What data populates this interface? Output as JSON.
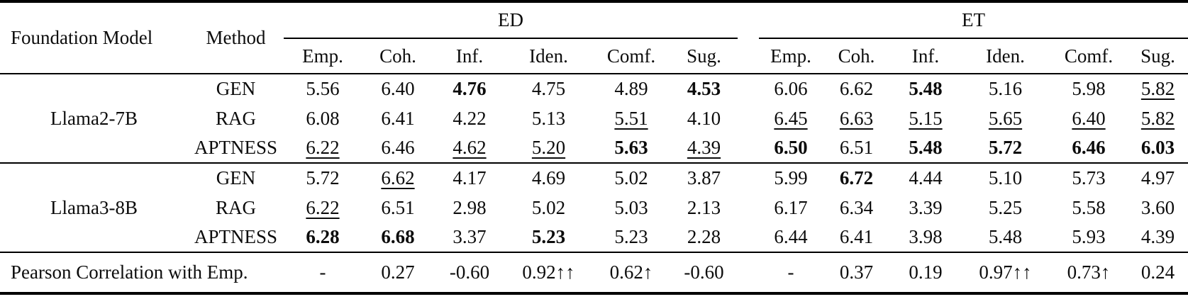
{
  "table": {
    "col_headers": {
      "foundation_model": "Foundation Model",
      "method": "Method",
      "groups": [
        {
          "label": "ED",
          "cols": [
            "Emp.",
            "Coh.",
            "Inf.",
            "Iden.",
            "Comf.",
            "Sug."
          ]
        },
        {
          "label": "ET",
          "cols": [
            "Emp.",
            "Coh.",
            "Inf.",
            "Iden.",
            "Comf.",
            "Sug."
          ]
        }
      ]
    },
    "sections": [
      {
        "model": "Llama2-7B",
        "rows": [
          {
            "method": "GEN",
            "ed": [
              {
                "v": "5.56"
              },
              {
                "v": "6.40"
              },
              {
                "v": "4.76",
                "b": true
              },
              {
                "v": "4.75"
              },
              {
                "v": "4.89"
              },
              {
                "v": "4.53",
                "b": true
              }
            ],
            "et": [
              {
                "v": "6.06"
              },
              {
                "v": "6.62"
              },
              {
                "v": "5.48",
                "b": true
              },
              {
                "v": "5.16"
              },
              {
                "v": "5.98"
              },
              {
                "v": "5.82",
                "u": true
              }
            ]
          },
          {
            "method": "RAG",
            "ed": [
              {
                "v": "6.08"
              },
              {
                "v": "6.41"
              },
              {
                "v": "4.22"
              },
              {
                "v": "5.13"
              },
              {
                "v": "5.51",
                "u": true
              },
              {
                "v": "4.10"
              }
            ],
            "et": [
              {
                "v": "6.45",
                "u": true
              },
              {
                "v": "6.63",
                "u": true
              },
              {
                "v": "5.15",
                "u": true
              },
              {
                "v": "5.65",
                "u": true
              },
              {
                "v": "6.40",
                "u": true
              },
              {
                "v": "5.82",
                "u": true
              }
            ]
          },
          {
            "method": "APTNESS",
            "ed": [
              {
                "v": "6.22",
                "u": true
              },
              {
                "v": "6.46"
              },
              {
                "v": "4.62",
                "u": true
              },
              {
                "v": "5.20",
                "u": true
              },
              {
                "v": "5.63",
                "b": true
              },
              {
                "v": "4.39",
                "u": true
              }
            ],
            "et": [
              {
                "v": "6.50",
                "b": true
              },
              {
                "v": "6.51"
              },
              {
                "v": "5.48",
                "b": true
              },
              {
                "v": "5.72",
                "b": true
              },
              {
                "v": "6.46",
                "b": true
              },
              {
                "v": "6.03",
                "b": true
              }
            ]
          }
        ]
      },
      {
        "model": "Llama3-8B",
        "rows": [
          {
            "method": "GEN",
            "ed": [
              {
                "v": "5.72"
              },
              {
                "v": "6.62",
                "u": true
              },
              {
                "v": "4.17"
              },
              {
                "v": "4.69"
              },
              {
                "v": "5.02"
              },
              {
                "v": "3.87"
              }
            ],
            "et": [
              {
                "v": "5.99"
              },
              {
                "v": "6.72",
                "b": true
              },
              {
                "v": "4.44"
              },
              {
                "v": "5.10"
              },
              {
                "v": "5.73"
              },
              {
                "v": "4.97"
              }
            ]
          },
          {
            "method": "RAG",
            "ed": [
              {
                "v": "6.22",
                "u": true
              },
              {
                "v": "6.51"
              },
              {
                "v": "2.98"
              },
              {
                "v": "5.02"
              },
              {
                "v": "5.03"
              },
              {
                "v": "2.13"
              }
            ],
            "et": [
              {
                "v": "6.17"
              },
              {
                "v": "6.34"
              },
              {
                "v": "3.39"
              },
              {
                "v": "5.25"
              },
              {
                "v": "5.58"
              },
              {
                "v": "3.60"
              }
            ]
          },
          {
            "method": "APTNESS",
            "ed": [
              {
                "v": "6.28",
                "b": true
              },
              {
                "v": "6.68",
                "b": true
              },
              {
                "v": "3.37"
              },
              {
                "v": "5.23",
                "b": true
              },
              {
                "v": "5.23"
              },
              {
                "v": "2.28"
              }
            ],
            "et": [
              {
                "v": "6.44"
              },
              {
                "v": "6.41"
              },
              {
                "v": "3.98"
              },
              {
                "v": "5.48"
              },
              {
                "v": "5.93"
              },
              {
                "v": "4.39"
              }
            ]
          }
        ]
      }
    ],
    "footer": {
      "label": "Pearson Correlation with Emp.",
      "ed": [
        "-",
        "0.27",
        "-0.60",
        "0.92↑↑",
        "0.62↑",
        "-0.60"
      ],
      "et": [
        "-",
        "0.37",
        "0.19",
        "0.97↑↑",
        "0.73↑",
        "0.24"
      ]
    }
  }
}
